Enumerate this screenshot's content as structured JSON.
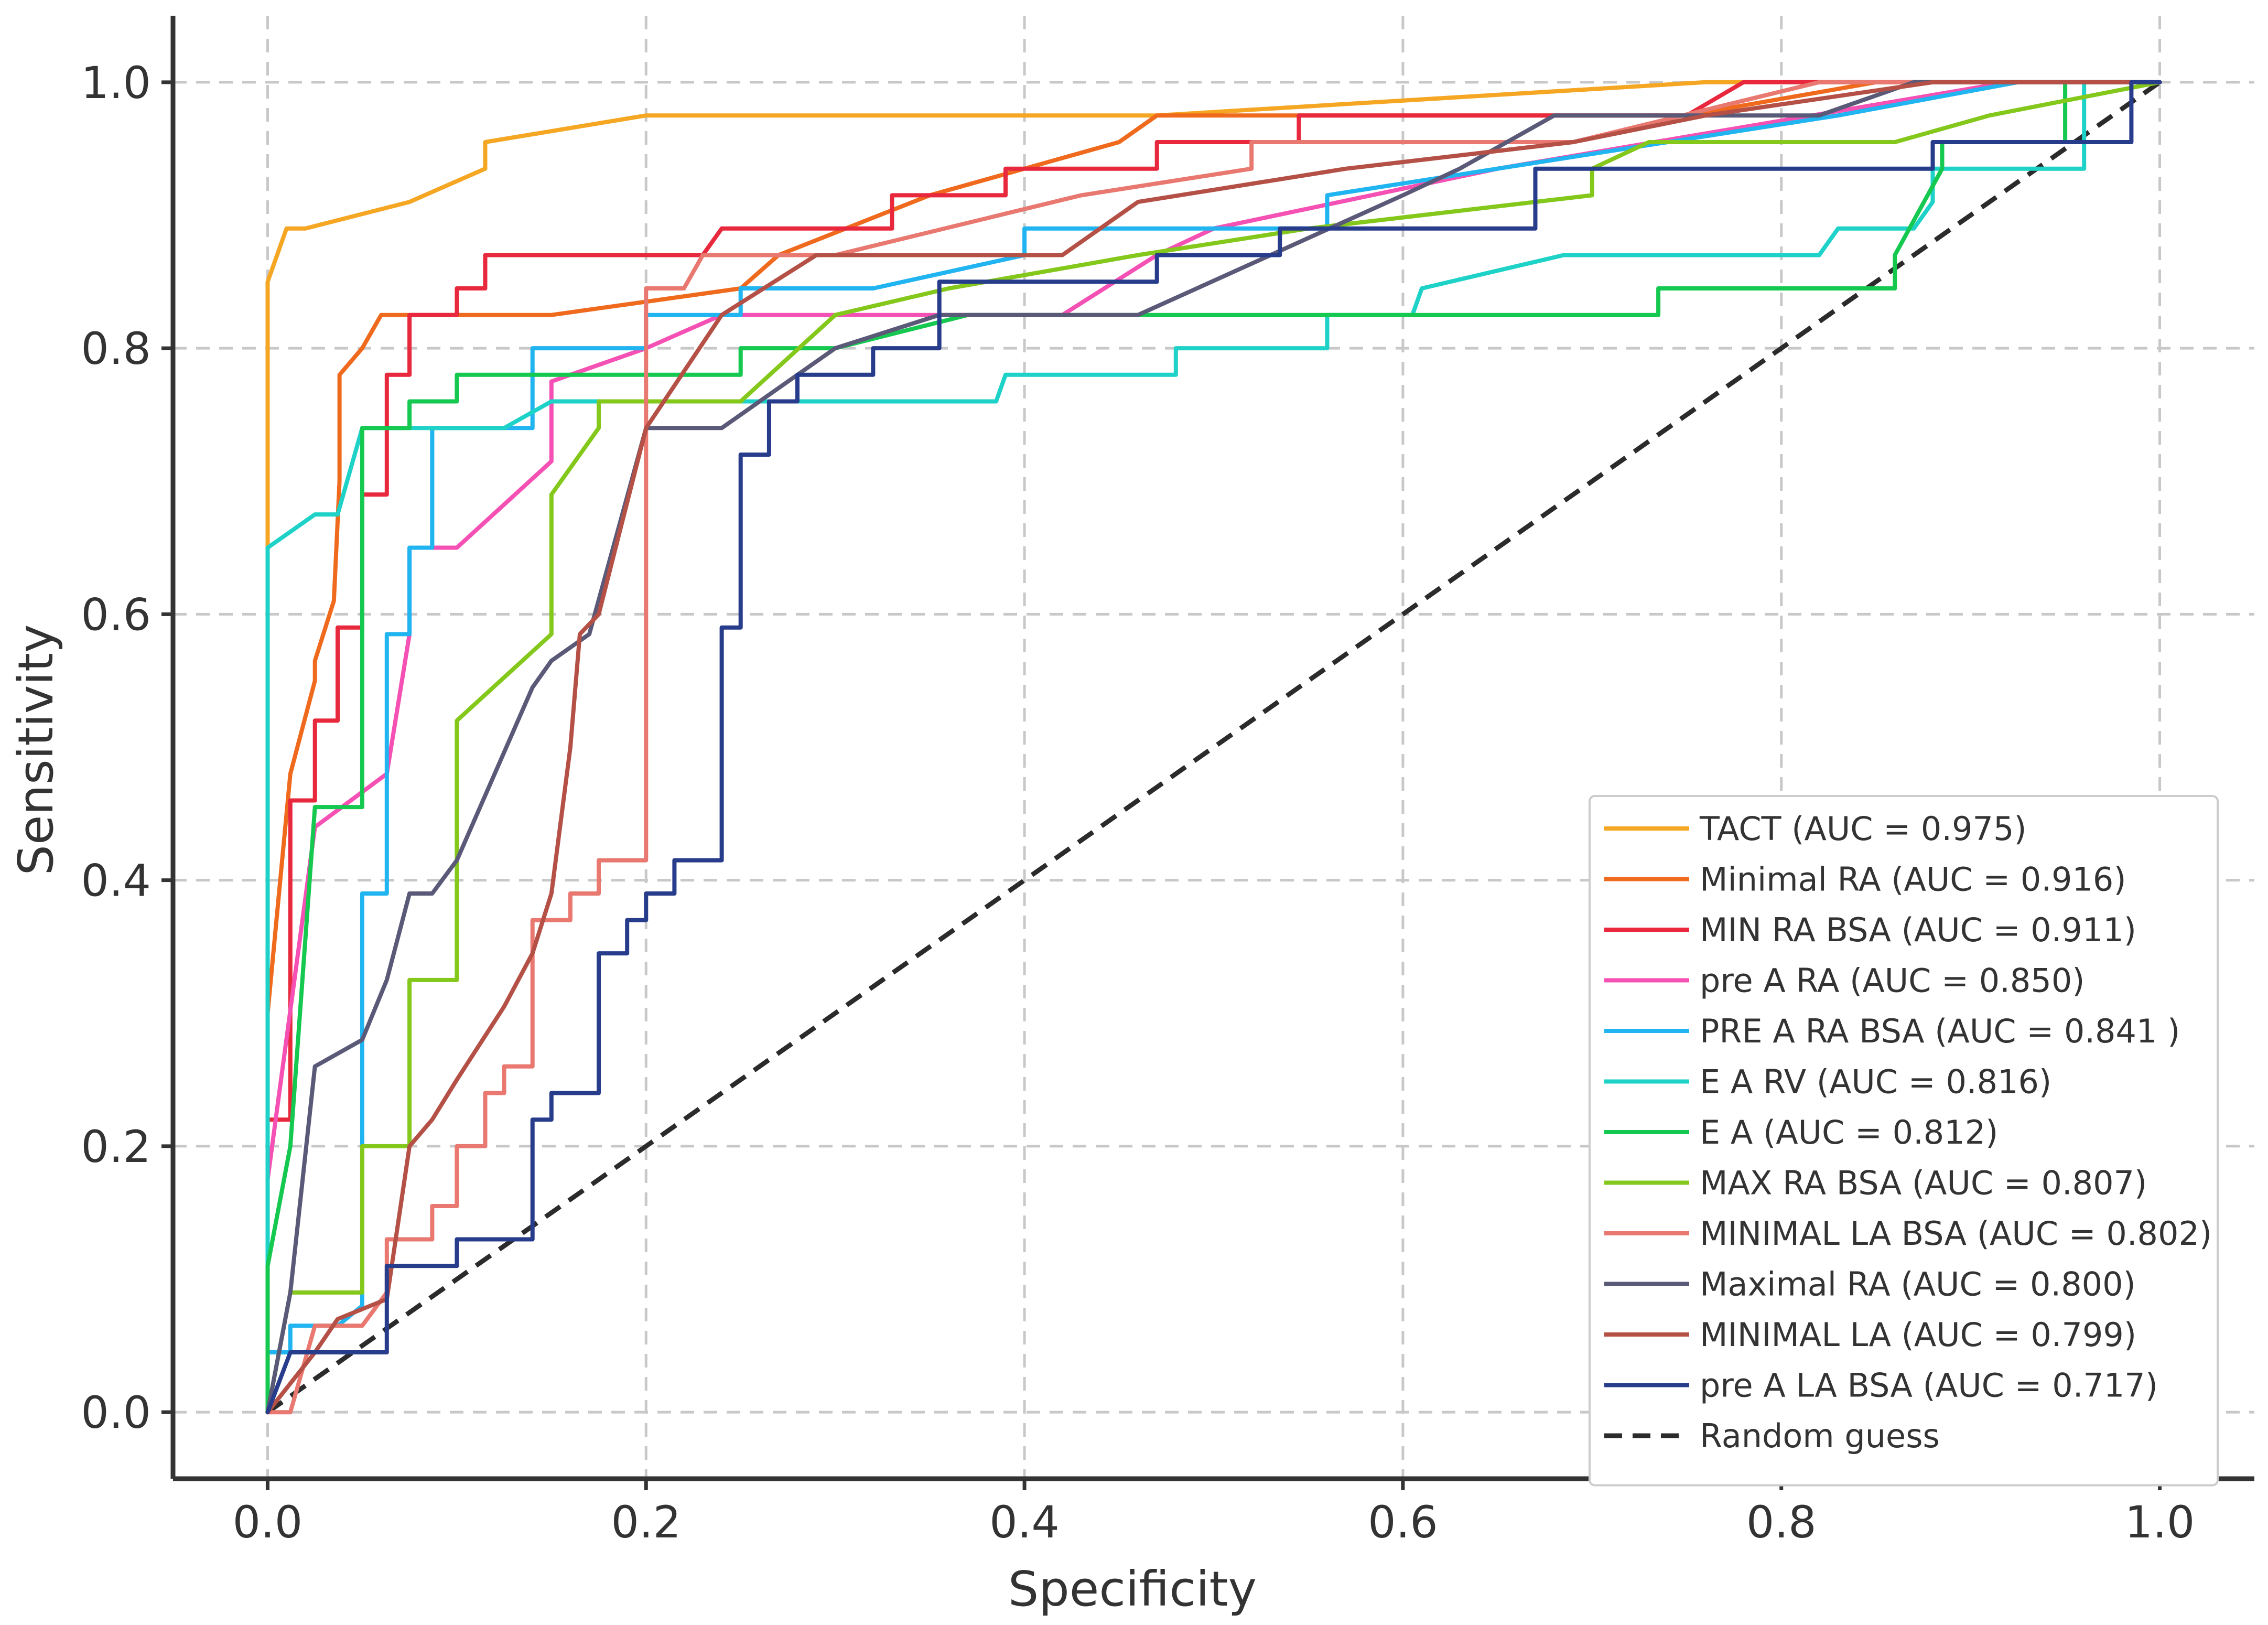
{
  "chart_data": {
    "type": "line",
    "title": "",
    "xlabel": "Specificity",
    "ylabel": "Sensitivity",
    "xlim": [
      -0.05,
      1.05
    ],
    "ylim": [
      -0.05,
      1.05
    ],
    "xticks": [
      0.0,
      0.2,
      0.4,
      0.6,
      0.8,
      1.0
    ],
    "yticks": [
      0.0,
      0.2,
      0.4,
      0.6,
      0.8,
      1.0
    ],
    "xtick_labels": [
      "0.0",
      "0.2",
      "0.4",
      "0.6",
      "0.8",
      "1.0"
    ],
    "ytick_labels": [
      "0.0",
      "0.2",
      "0.4",
      "0.6",
      "0.8",
      "1.0"
    ],
    "grid": true,
    "legend_position": "bottom-right",
    "series": [
      {
        "name": "TACT (AUC = 0.975)",
        "color": "#f5a623",
        "x": [
          0,
          0,
          0,
          0.01,
          0.02,
          0.075,
          0.115,
          0.115,
          0.2,
          0.47,
          0.76,
          0.98,
          1.0
        ],
        "y": [
          0,
          0.65,
          0.85,
          0.89,
          0.89,
          0.91,
          0.935,
          0.955,
          0.975,
          0.975,
          1.0,
          1.0,
          1.0
        ]
      },
      {
        "name": "Minimal RA (AUC = 0.916)",
        "color": "#f06a1e",
        "x": [
          0,
          0,
          0.012,
          0.025,
          0.025,
          0.035,
          0.038,
          0.038,
          0.05,
          0.06,
          0.15,
          0.25,
          0.27,
          0.35,
          0.45,
          0.47,
          0.55,
          0.75,
          0.85,
          1.0
        ],
        "y": [
          0,
          0.3,
          0.48,
          0.55,
          0.565,
          0.61,
          0.7,
          0.78,
          0.8,
          0.825,
          0.825,
          0.845,
          0.87,
          0.915,
          0.955,
          0.975,
          0.975,
          0.975,
          1.0,
          1.0
        ]
      },
      {
        "name": "MIN RA BSA (AUC = 0.911)",
        "color": "#e8283c",
        "x": [
          0,
          0,
          0.012,
          0.012,
          0.025,
          0.025,
          0.037,
          0.037,
          0.05,
          0.05,
          0.063,
          0.063,
          0.075,
          0.075,
          0.1,
          0.1,
          0.115,
          0.115,
          0.23,
          0.24,
          0.33,
          0.33,
          0.39,
          0.39,
          0.47,
          0.47,
          0.545,
          0.545,
          0.75,
          0.78,
          1.0
        ],
        "y": [
          0,
          0.22,
          0.22,
          0.46,
          0.46,
          0.52,
          0.52,
          0.59,
          0.59,
          0.69,
          0.69,
          0.78,
          0.78,
          0.825,
          0.825,
          0.845,
          0.845,
          0.87,
          0.87,
          0.89,
          0.89,
          0.915,
          0.915,
          0.935,
          0.935,
          0.955,
          0.955,
          0.975,
          0.975,
          1.0,
          1.0
        ]
      },
      {
        "name": "pre A RA (AUC = 0.850)",
        "color": "#f550b4",
        "x": [
          0,
          0,
          0.025,
          0.063,
          0.075,
          0.075,
          0.1,
          0.15,
          0.15,
          0.2,
          0.24,
          0.42,
          0.47,
          0.5,
          0.65,
          0.92,
          1.0
        ],
        "y": [
          0,
          0.175,
          0.44,
          0.48,
          0.585,
          0.65,
          0.65,
          0.715,
          0.775,
          0.8,
          0.825,
          0.825,
          0.87,
          0.89,
          0.935,
          1.0,
          1.0
        ]
      },
      {
        "name": "PRE A RA BSA (AUC = 0.841 )",
        "color": "#20b4f0",
        "x": [
          0,
          0,
          0.012,
          0.012,
          0.037,
          0.05,
          0.05,
          0.063,
          0.063,
          0.075,
          0.075,
          0.087,
          0.087,
          0.14,
          0.14,
          0.2,
          0.2,
          0.25,
          0.25,
          0.32,
          0.4,
          0.4,
          0.56,
          0.56,
          0.83,
          0.925,
          1.0
        ],
        "y": [
          0,
          0.045,
          0.045,
          0.065,
          0.065,
          0.08,
          0.39,
          0.39,
          0.585,
          0.585,
          0.65,
          0.65,
          0.74,
          0.74,
          0.8,
          0.8,
          0.825,
          0.825,
          0.845,
          0.845,
          0.87,
          0.89,
          0.89,
          0.915,
          0.975,
          1.0,
          1.0
        ]
      },
      {
        "name": "E A RV (AUC = 0.816)",
        "color": "#1ed2c8",
        "x": [
          0,
          0,
          0.025,
          0.037,
          0.05,
          0.05,
          0.125,
          0.15,
          0.385,
          0.39,
          0.48,
          0.48,
          0.56,
          0.56,
          0.605,
          0.61,
          0.685,
          0.82,
          0.83,
          0.87,
          0.88,
          0.88,
          0.96,
          0.96,
          1.0
        ],
        "y": [
          0,
          0.65,
          0.675,
          0.675,
          0.74,
          0.74,
          0.74,
          0.76,
          0.76,
          0.78,
          0.78,
          0.8,
          0.8,
          0.825,
          0.825,
          0.845,
          0.87,
          0.87,
          0.89,
          0.89,
          0.91,
          0.935,
          0.935,
          1.0,
          1.0
        ]
      },
      {
        "name": "E A (AUC = 0.812)",
        "color": "#14c850",
        "x": [
          0,
          0,
          0.012,
          0.025,
          0.025,
          0.05,
          0.05,
          0.075,
          0.075,
          0.1,
          0.1,
          0.25,
          0.25,
          0.3,
          0.37,
          0.37,
          0.735,
          0.735,
          0.86,
          0.86,
          0.885,
          0.885,
          0.95,
          0.95,
          1.0
        ],
        "y": [
          0,
          0.11,
          0.2,
          0.455,
          0.455,
          0.455,
          0.74,
          0.74,
          0.76,
          0.76,
          0.78,
          0.78,
          0.8,
          0.8,
          0.825,
          0.825,
          0.825,
          0.845,
          0.845,
          0.87,
          0.935,
          0.955,
          0.955,
          1.0,
          1.0
        ]
      },
      {
        "name": "MAX RA BSA (AUC = 0.807)",
        "color": "#84c81c",
        "x": [
          0,
          0.012,
          0.012,
          0.05,
          0.05,
          0.075,
          0.075,
          0.1,
          0.1,
          0.1,
          0.15,
          0.15,
          0.175,
          0.175,
          0.25,
          0.3,
          0.36,
          0.46,
          0.55,
          0.7,
          0.7,
          0.73,
          0.86,
          0.91,
          1.0
        ],
        "y": [
          0,
          0.09,
          0.09,
          0.09,
          0.2,
          0.2,
          0.325,
          0.325,
          0.5,
          0.52,
          0.585,
          0.69,
          0.74,
          0.76,
          0.76,
          0.825,
          0.845,
          0.87,
          0.89,
          0.915,
          0.935,
          0.955,
          0.955,
          0.975,
          1.0
        ]
      },
      {
        "name": "MINIMAL LA BSA (AUC = 0.802)",
        "color": "#e87870",
        "x": [
          0,
          0.012,
          0.025,
          0.05,
          0.063,
          0.063,
          0.087,
          0.087,
          0.1,
          0.1,
          0.115,
          0.115,
          0.125,
          0.125,
          0.14,
          0.14,
          0.16,
          0.16,
          0.175,
          0.175,
          0.2,
          0.2,
          0.22,
          0.23,
          0.3,
          0.43,
          0.52,
          0.52,
          0.69,
          0.82,
          0.85,
          1.0
        ],
        "y": [
          0,
          0,
          0.065,
          0.065,
          0.09,
          0.13,
          0.13,
          0.155,
          0.155,
          0.2,
          0.2,
          0.24,
          0.24,
          0.26,
          0.26,
          0.37,
          0.37,
          0.39,
          0.39,
          0.415,
          0.415,
          0.845,
          0.845,
          0.87,
          0.87,
          0.915,
          0.935,
          0.955,
          0.955,
          1.0,
          1.0,
          1.0
        ]
      },
      {
        "name": "Maximal RA (AUC = 0.800)",
        "color": "#5a5a78",
        "x": [
          0,
          0.012,
          0.025,
          0.05,
          0.063,
          0.075,
          0.087,
          0.1,
          0.14,
          0.15,
          0.17,
          0.2,
          0.24,
          0.3,
          0.355,
          0.46,
          0.6,
          0.63,
          0.68,
          0.82,
          0.87,
          1.0
        ],
        "y": [
          0,
          0.09,
          0.26,
          0.28,
          0.325,
          0.39,
          0.39,
          0.415,
          0.545,
          0.565,
          0.585,
          0.74,
          0.74,
          0.8,
          0.825,
          0.825,
          0.915,
          0.935,
          0.975,
          0.975,
          1.0,
          1.0
        ]
      },
      {
        "name": "MINIMAL LA (AUC = 0.799)",
        "color": "#b45046",
        "x": [
          0,
          0.025,
          0.037,
          0.063,
          0.075,
          0.087,
          0.1,
          0.125,
          0.14,
          0.15,
          0.16,
          0.165,
          0.175,
          0.2,
          0.24,
          0.29,
          0.42,
          0.46,
          0.57,
          0.69,
          0.76,
          0.88,
          1.0
        ],
        "y": [
          0,
          0.045,
          0.07,
          0.085,
          0.2,
          0.22,
          0.25,
          0.305,
          0.345,
          0.39,
          0.5,
          0.585,
          0.6,
          0.74,
          0.825,
          0.87,
          0.87,
          0.91,
          0.935,
          0.955,
          0.975,
          1.0,
          1.0
        ]
      },
      {
        "name": "pre A LA BSA (AUC = 0.717)",
        "color": "#283c8c",
        "x": [
          0,
          0.012,
          0.012,
          0.063,
          0.063,
          0.1,
          0.1,
          0.14,
          0.14,
          0.15,
          0.15,
          0.175,
          0.175,
          0.19,
          0.19,
          0.2,
          0.2,
          0.215,
          0.215,
          0.24,
          0.24,
          0.25,
          0.25,
          0.265,
          0.265,
          0.28,
          0.28,
          0.32,
          0.32,
          0.355,
          0.355,
          0.47,
          0.47,
          0.535,
          0.535,
          0.67,
          0.67,
          0.88,
          0.88,
          0.985,
          0.985,
          1.0
        ],
        "y": [
          0,
          0.045,
          0.045,
          0.045,
          0.11,
          0.11,
          0.13,
          0.13,
          0.22,
          0.22,
          0.24,
          0.24,
          0.345,
          0.345,
          0.37,
          0.37,
          0.39,
          0.39,
          0.415,
          0.415,
          0.59,
          0.59,
          0.72,
          0.72,
          0.76,
          0.76,
          0.78,
          0.78,
          0.8,
          0.8,
          0.85,
          0.85,
          0.87,
          0.87,
          0.89,
          0.89,
          0.935,
          0.935,
          0.955,
          0.955,
          1.0,
          1.0
        ]
      }
    ],
    "reference_line": {
      "name": "Random guess",
      "color": "#2b2b2b",
      "x": [
        0,
        1
      ],
      "y": [
        0,
        1
      ]
    }
  }
}
